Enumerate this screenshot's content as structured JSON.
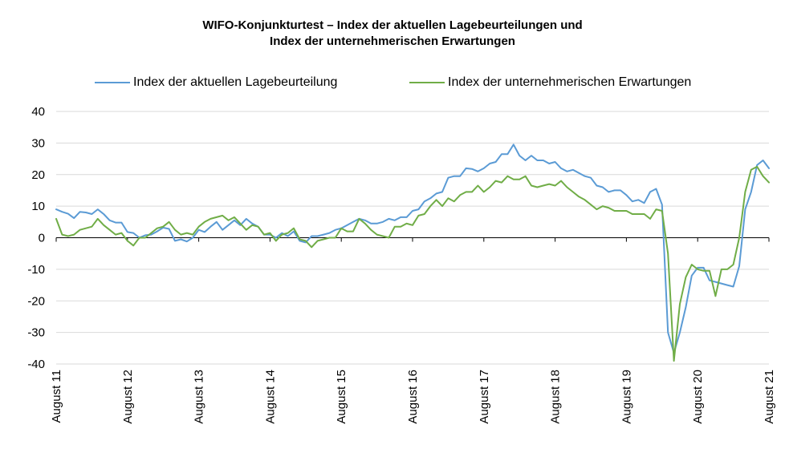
{
  "chart_data": {
    "type": "line",
    "title_line1": "WIFO-Konjunkturtest – Index der aktuellen Lagebeurteilungen und",
    "title_line2": "Index der unternehmerischen Erwartungen",
    "xlabel": "",
    "ylabel": "",
    "ylim": [
      -40,
      40
    ],
    "yticks": [
      40,
      30,
      20,
      10,
      0,
      -10,
      -20,
      -30,
      -40
    ],
    "x_start": "2011-08",
    "x_end": "2021-08",
    "xtick_labels": [
      "August 11",
      "August 12",
      "August 13",
      "August 14",
      "August 15",
      "August 16",
      "August 17",
      "August 18",
      "August 19",
      "August 20",
      "August 21"
    ],
    "grid": true,
    "legend_position": "top",
    "series": [
      {
        "name": "Index der aktuellen Lagebeurteilung",
        "color": "#5b9bd5",
        "values": [
          9.0,
          8.2,
          7.6,
          6.2,
          8.2,
          8.0,
          7.5,
          9.0,
          7.5,
          5.5,
          4.8,
          4.8,
          1.8,
          1.5,
          0.0,
          0.8,
          1.0,
          2.0,
          3.2,
          2.8,
          -1.0,
          -0.5,
          -1.2,
          0.0,
          2.5,
          1.8,
          3.5,
          5.0,
          2.5,
          4.0,
          5.5,
          4.0,
          6.0,
          4.5,
          3.5,
          1.0,
          1.0,
          0.0,
          1.5,
          0.5,
          2.0,
          -1.0,
          -1.5,
          0.5,
          0.5,
          1.0,
          1.5,
          2.5,
          3.0,
          4.0,
          5.0,
          6.0,
          5.5,
          4.5,
          4.5,
          5.0,
          6.0,
          5.5,
          6.5,
          6.5,
          8.5,
          9.0,
          11.5,
          12.5,
          14.0,
          14.5,
          19.0,
          19.5,
          19.5,
          22.0,
          21.8,
          21.0,
          22.0,
          23.5,
          24.0,
          26.5,
          26.5,
          29.5,
          26.0,
          24.5,
          26.0,
          24.5,
          24.5,
          23.5,
          24.0,
          22.0,
          21.0,
          21.5,
          20.5,
          19.5,
          19.0,
          16.5,
          16.0,
          14.5,
          15.0,
          15.0,
          13.5,
          11.5,
          12.0,
          11.0,
          14.5,
          15.5,
          10.5,
          -30.0,
          -36.5,
          -30.0,
          -22.0,
          -12.0,
          -9.5,
          -9.5,
          -13.5,
          -14.0,
          -14.5,
          -15.0,
          -15.5,
          -9.0,
          9.0,
          14.5,
          23.0,
          24.5,
          22.0
        ]
      },
      {
        "name": "Index der unternehmerischen Erwartungen",
        "color": "#70ad47",
        "values": [
          6.0,
          1.0,
          0.5,
          1.0,
          2.5,
          3.0,
          3.5,
          6.0,
          4.0,
          2.5,
          1.0,
          1.5,
          -1.0,
          -2.5,
          0.0,
          0.0,
          1.5,
          3.0,
          3.5,
          5.0,
          2.5,
          1.0,
          1.5,
          1.0,
          3.5,
          5.0,
          6.0,
          6.5,
          7.0,
          5.5,
          6.5,
          4.5,
          2.5,
          4.0,
          3.5,
          1.0,
          1.5,
          -1.0,
          1.0,
          1.5,
          3.0,
          -0.5,
          -1.0,
          -3.0,
          -1.0,
          -0.5,
          0.0,
          0.0,
          3.0,
          2.0,
          2.0,
          6.0,
          4.5,
          2.5,
          1.0,
          0.5,
          0.0,
          3.5,
          3.5,
          4.5,
          4.0,
          7.0,
          7.5,
          10.0,
          12.0,
          10.0,
          12.5,
          11.5,
          13.5,
          14.5,
          14.5,
          16.5,
          14.5,
          16.0,
          18.0,
          17.5,
          19.5,
          18.5,
          18.5,
          19.5,
          16.5,
          16.0,
          16.5,
          17.0,
          16.5,
          18.0,
          16.0,
          14.5,
          13.0,
          12.0,
          10.5,
          9.0,
          10.0,
          9.5,
          8.5,
          8.5,
          8.5,
          7.5,
          7.5,
          7.5,
          6.0,
          9.0,
          8.5,
          -5.0,
          -39.0,
          -21.0,
          -12.5,
          -8.5,
          -10.0,
          -10.5,
          -10.5,
          -18.5,
          -10.0,
          -10.0,
          -8.5,
          0.0,
          14.5,
          21.5,
          22.5,
          19.5,
          17.5
        ]
      }
    ]
  }
}
